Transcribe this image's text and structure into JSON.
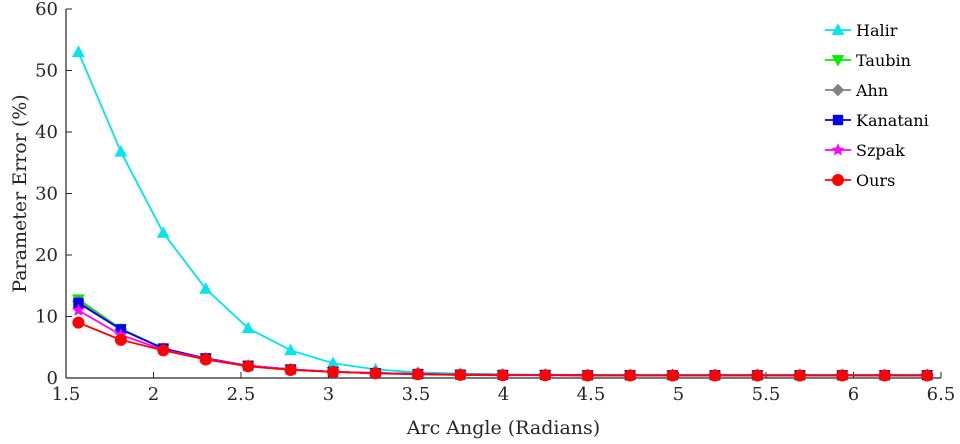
{
  "chart_data": {
    "type": "line",
    "xlabel": "Arc Angle (Radians)",
    "ylabel": "Parameter Error (%)",
    "xlim": [
      1.5,
      6.5
    ],
    "ylim": [
      0,
      60
    ],
    "xticks": [
      "1.5",
      "2",
      "2.5",
      "3",
      "3.5",
      "4",
      "4.5",
      "5",
      "5.5",
      "6",
      "6.5"
    ],
    "yticks": [
      "0",
      "10",
      "20",
      "30",
      "40",
      "50",
      "60"
    ],
    "grid": false,
    "legend_position": "top-right",
    "x": [
      1.571,
      1.8135,
      2.056,
      2.2985,
      2.541,
      2.7835,
      3.026,
      3.2685,
      3.511,
      3.7535,
      3.996,
      4.2385,
      4.481,
      4.7235,
      4.966,
      5.2085,
      5.451,
      5.6935,
      5.936,
      6.1785,
      6.421
    ],
    "series": [
      {
        "name": "Halir",
        "color": "#00e5ee",
        "marker": "triangle-up",
        "values": [
          53,
          36.8,
          23.6,
          14.5,
          8.1,
          4.5,
          2.4,
          1.4,
          0.9,
          0.7,
          0.6,
          0.55,
          0.5,
          0.5,
          0.5,
          0.5,
          0.5,
          0.5,
          0.5,
          0.5,
          0.5
        ]
      },
      {
        "name": "Taubin",
        "color": "#00ee00",
        "marker": "triangle-down",
        "values": [
          12.8,
          8.0,
          4.8,
          3.2,
          2.0,
          1.4,
          1.0,
          0.8,
          0.65,
          0.55,
          0.5,
          0.5,
          0.45,
          0.45,
          0.45,
          0.45,
          0.45,
          0.45,
          0.45,
          0.45,
          0.45
        ]
      },
      {
        "name": "Ahn",
        "color": "#808080",
        "marker": "diamond",
        "values": [
          12.5,
          7.9,
          4.8,
          3.2,
          2.0,
          1.4,
          1.0,
          0.8,
          0.65,
          0.55,
          0.5,
          0.5,
          0.45,
          0.45,
          0.45,
          0.45,
          0.45,
          0.45,
          0.45,
          0.45,
          0.45
        ]
      },
      {
        "name": "Kanatani",
        "color": "#0000ee",
        "marker": "square",
        "values": [
          12.2,
          7.9,
          4.8,
          3.2,
          2.0,
          1.4,
          1.0,
          0.8,
          0.65,
          0.55,
          0.5,
          0.5,
          0.45,
          0.45,
          0.45,
          0.45,
          0.45,
          0.45,
          0.45,
          0.45,
          0.45
        ]
      },
      {
        "name": "Szpak",
        "color": "#ff00ff",
        "marker": "star",
        "values": [
          11.0,
          7.0,
          4.6,
          3.1,
          2.0,
          1.4,
          1.0,
          0.8,
          0.65,
          0.55,
          0.5,
          0.5,
          0.45,
          0.45,
          0.45,
          0.45,
          0.45,
          0.45,
          0.45,
          0.45,
          0.45
        ]
      },
      {
        "name": "Ours",
        "color": "#ff0000",
        "marker": "circle",
        "values": [
          9.0,
          6.2,
          4.5,
          3.0,
          1.9,
          1.3,
          1.0,
          0.75,
          0.6,
          0.5,
          0.45,
          0.45,
          0.4,
          0.4,
          0.4,
          0.4,
          0.4,
          0.4,
          0.4,
          0.4,
          0.4
        ]
      }
    ]
  }
}
